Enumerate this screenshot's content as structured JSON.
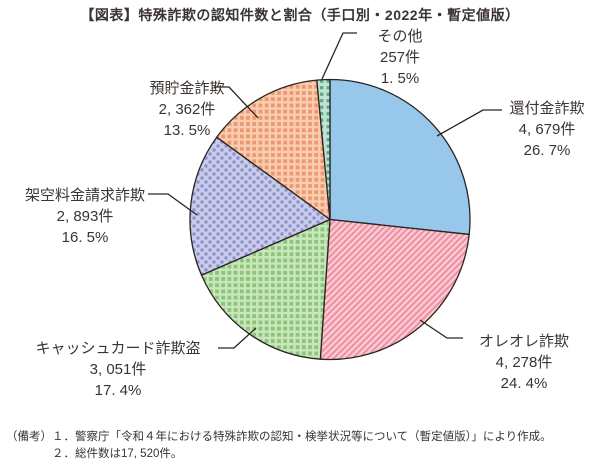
{
  "title": "【図表】特殊詐欺の認知件数と割合（手口別・2022年・暫定値版）",
  "footnote": {
    "line1": "（備考）１．警察庁「令和４年における特殊詐欺の認知・検挙状況等について（暫定値版）」により作成。",
    "line2": "２．総件数は17, 520件。"
  },
  "colors": {
    "text": "#3b3430",
    "outline": "#2a2422"
  },
  "chart_data": {
    "type": "pie",
    "title": "【図表】特殊詐欺の認知件数と割合（手口別・2022年・暫定値版）",
    "total_cases": 17520,
    "legend_position": "callout-labels",
    "start_angle_deg": -90,
    "direction": "clockwise",
    "slices": [
      {
        "name": "還付金詐欺",
        "count": 4679,
        "count_label": "4, 679件",
        "value": 26.7,
        "pct_label": "26. 7%",
        "pattern": "solid",
        "fill": "#97C7EA",
        "accent": "#97C7EA"
      },
      {
        "name": "オレオレ詐欺",
        "count": 4278,
        "count_label": "4, 278件",
        "value": 24.4,
        "pct_label": "24. 4%",
        "pattern": "stripes",
        "fill": "#FACDD5",
        "accent": "#EF90A2"
      },
      {
        "name": "キャッシュカード詐欺盗",
        "count": 3051,
        "count_label": "3, 051件",
        "value": 17.4,
        "pct_label": "17. 4%",
        "pattern": "lattice",
        "fill": "#8CC47D",
        "accent": "#C9E7BA"
      },
      {
        "name": "架空料金請求詐欺",
        "count": 2893,
        "count_label": "2, 893件",
        "value": 16.5,
        "pct_label": "16. 5%",
        "pattern": "dots",
        "fill": "#CBCBE9",
        "accent": "#8994CB"
      },
      {
        "name": "預貯金詐欺",
        "count": 2362,
        "count_label": "2, 362件",
        "value": 13.5,
        "pct_label": "13. 5%",
        "pattern": "lattice",
        "fill": "#EE9772",
        "accent": "#F8CDB0"
      },
      {
        "name": "その他",
        "count": 257,
        "count_label": "257件",
        "value": 1.5,
        "pct_label": "1. 5%",
        "pattern": "squares",
        "fill": "#C2E0D3",
        "accent": "#54A983"
      }
    ]
  }
}
